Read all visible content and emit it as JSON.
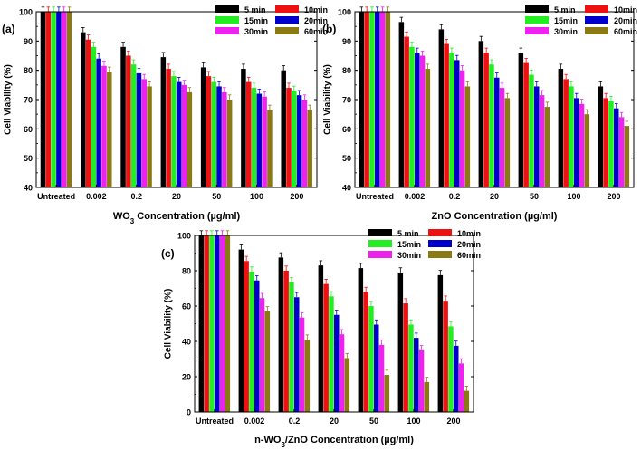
{
  "figure": {
    "description_hidden": ""
  },
  "chart_data": [
    {
      "type": "bar",
      "panel_label": "(a)",
      "title": "",
      "xlabel": "WO3 Concentration (µg/ml)",
      "xlabel_main": "WO",
      "xlabel_sub": "3",
      "xlabel_rest": " Concentration (µg/ml)",
      "ylabel": "Cell Viability (%)",
      "ylim": [
        40,
        100
      ],
      "yticks": [
        40,
        50,
        60,
        70,
        80,
        90,
        100
      ],
      "categories": [
        "Untreated",
        "0.002",
        "0.2",
        "20",
        "50",
        "100",
        "200"
      ],
      "series": [
        {
          "name": "5 min",
          "values": [
            100,
            93,
            88,
            84.5,
            81,
            80.5,
            80
          ]
        },
        {
          "name": "10min",
          "values": [
            100,
            90.5,
            85,
            80.5,
            78,
            76,
            74
          ]
        },
        {
          "name": "15min",
          "values": [
            100,
            88,
            82,
            78,
            76,
            74,
            73
          ]
        },
        {
          "name": "20min",
          "values": [
            100,
            84,
            79,
            76,
            74.5,
            72,
            71.5
          ]
        },
        {
          "name": "30min",
          "values": [
            100,
            81.5,
            77,
            75,
            72.5,
            71,
            70
          ]
        },
        {
          "name": "60min",
          "values": [
            100,
            79.5,
            74.5,
            72.5,
            70,
            66.5,
            66.5
          ]
        }
      ]
    },
    {
      "type": "bar",
      "panel_label": "(b)",
      "title": "",
      "xlabel": "ZnO Concentration (µg/ml)",
      "xlabel_main": "ZnO Concentration (µg/ml)",
      "xlabel_sub": "",
      "xlabel_rest": "",
      "ylabel": "Cell Viability (%)",
      "ylim": [
        40,
        100
      ],
      "yticks": [
        40,
        50,
        60,
        70,
        80,
        90,
        100
      ],
      "categories": [
        "Untreated",
        "0.002",
        "0.2",
        "20",
        "50",
        "100",
        "200"
      ],
      "series": [
        {
          "name": "5 min",
          "values": [
            100,
            96.5,
            94,
            90,
            86,
            80.5,
            74.5
          ]
        },
        {
          "name": "10min",
          "values": [
            100,
            91.5,
            89,
            86,
            82.5,
            77,
            70.5
          ]
        },
        {
          "name": "15min",
          "values": [
            100,
            88,
            86,
            82,
            78.5,
            74.5,
            69.5
          ]
        },
        {
          "name": "20min",
          "values": [
            100,
            86,
            83.5,
            77.5,
            74.5,
            70.5,
            67
          ]
        },
        {
          "name": "30min",
          "values": [
            100,
            85,
            80,
            74,
            71.5,
            68.5,
            64
          ]
        },
        {
          "name": "60min",
          "values": [
            100,
            80.5,
            74.5,
            70.5,
            67.5,
            65,
            61
          ]
        }
      ]
    },
    {
      "type": "bar",
      "panel_label": "(c)",
      "title": "",
      "xlabel": "n-WO3/ZnO Concentration (µg/ml)",
      "xlabel_main": "n-WO",
      "xlabel_sub": "3",
      "xlabel_rest": "/ZnO Concentration (µg/ml)",
      "ylabel": "Cell Viability (%)",
      "ylim": [
        0,
        100
      ],
      "yticks": [
        0,
        20,
        40,
        60,
        80,
        100
      ],
      "categories": [
        "Untreated",
        "0.002",
        "0.2",
        "20",
        "50",
        "100",
        "200"
      ],
      "series": [
        {
          "name": "5 min",
          "values": [
            100,
            92,
            87.5,
            83,
            81.5,
            79,
            77.5
          ]
        },
        {
          "name": "10min",
          "values": [
            100,
            85.5,
            80,
            72.5,
            68,
            61.5,
            63
          ]
        },
        {
          "name": "15min",
          "values": [
            100,
            79.5,
            73.5,
            65.5,
            60,
            49.5,
            48.5
          ]
        },
        {
          "name": "20min",
          "values": [
            100,
            74.5,
            65,
            55,
            49.5,
            42,
            37.5
          ]
        },
        {
          "name": "30min",
          "values": [
            100,
            64.5,
            53.5,
            44,
            38,
            35,
            27.5
          ]
        },
        {
          "name": "60min",
          "values": [
            100,
            57,
            41,
            30.5,
            21,
            17,
            12
          ]
        }
      ]
    }
  ],
  "colors": {
    "5 min": "#000000",
    "10min": "#ee1111",
    "15min": "#22ee22",
    "20min": "#0000cc",
    "30min": "#ee22ee",
    "60min": "#8b7a14"
  }
}
